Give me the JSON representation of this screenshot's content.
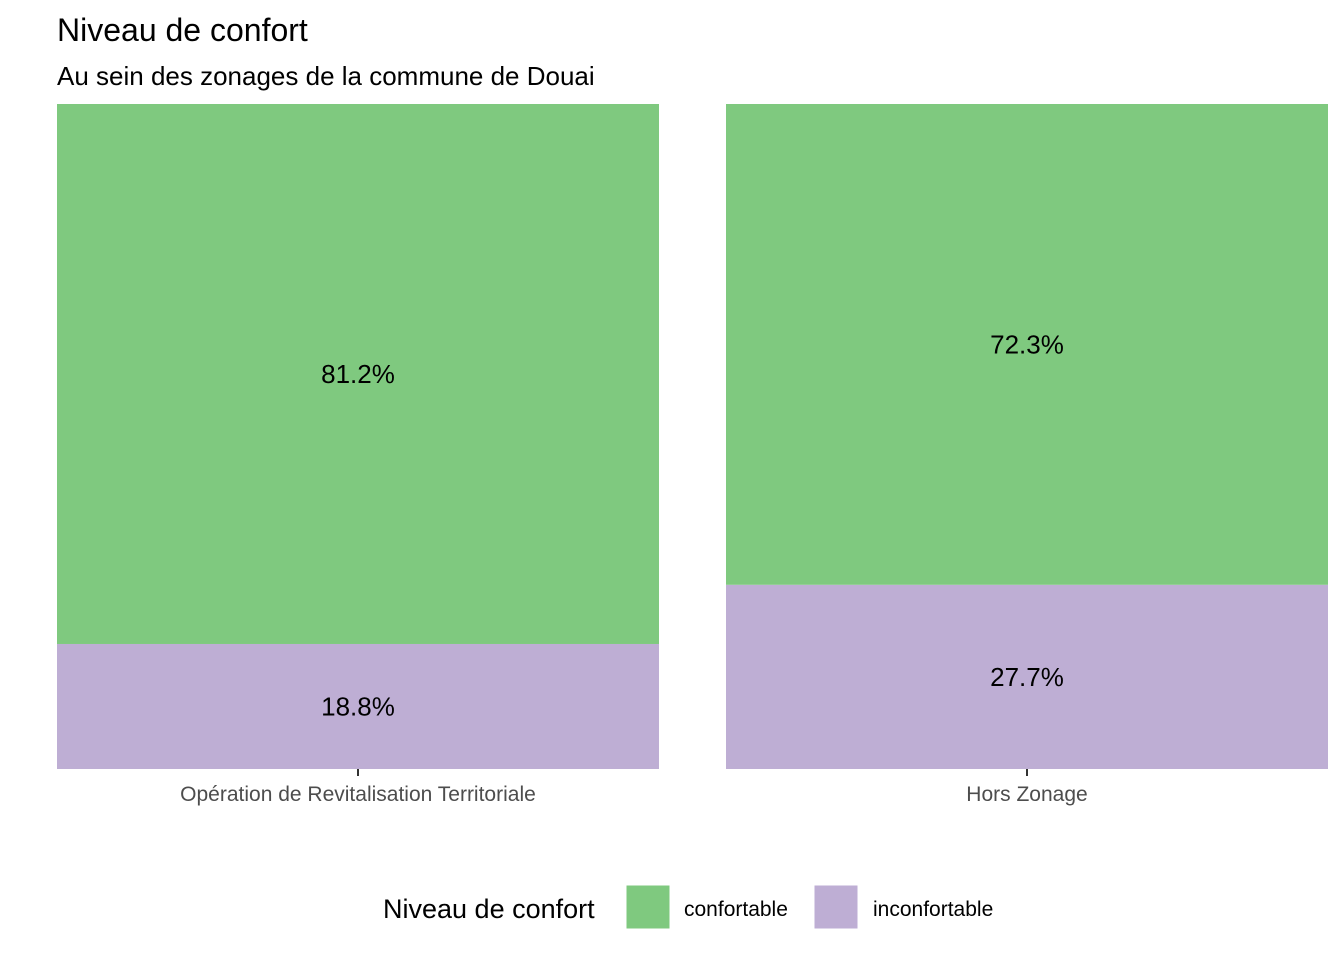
{
  "chart_data": {
    "type": "bar",
    "stacked": true,
    "normalized": true,
    "title": "Niveau de confort",
    "subtitle": "Au sein des zonages de la commune de Douai",
    "categories": [
      "Opération de Revitalisation Territoriale",
      "Hors Zonage"
    ],
    "series": [
      {
        "name": "confortable",
        "color": "#7fc97f",
        "values": [
          81.2,
          72.3
        ],
        "labels": [
          "81.2%",
          "72.3%"
        ]
      },
      {
        "name": "inconfortable",
        "color": "#beaed4",
        "values": [
          18.8,
          27.7
        ],
        "labels": [
          "18.8%",
          "27.7%"
        ]
      }
    ],
    "ylim": [
      0,
      100
    ],
    "grid": false,
    "legend": {
      "title": "Niveau de confort",
      "position": "bottom",
      "items": [
        "confortable",
        "inconfortable"
      ]
    }
  }
}
